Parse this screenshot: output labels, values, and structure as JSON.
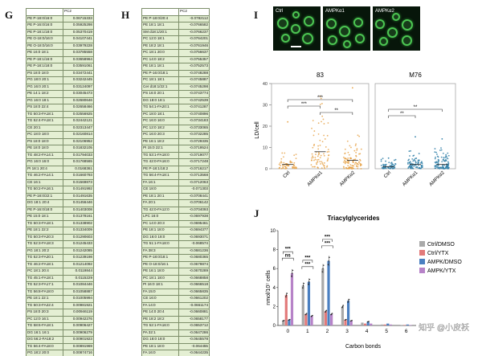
{
  "panels": {
    "g": "G",
    "h": "H",
    "i": "I",
    "j": "J"
  },
  "table_g": {
    "header": "PC2",
    "rows": [
      [
        "PE P-18:0/16:0",
        "0.06715333"
      ],
      [
        "PE P-16:0/16:0",
        "0.05925298"
      ],
      [
        "PE P-18:1/18:0",
        "0.05370419"
      ],
      [
        "PE O-18:0/16:0",
        "0.04107441"
      ],
      [
        "PE O-18:0/16:0",
        "0.03979228"
      ],
      [
        "PE 16:0 18:1",
        "0.03785558"
      ],
      [
        "PE P-18:1/16:0",
        "0.03658964"
      ],
      [
        "PE P-18:1/18:0",
        "0.03591061"
      ],
      [
        "PS 18:0 18:0",
        "0.03472441"
      ],
      [
        "PG 18:0 20:1",
        "0.03242445"
      ],
      [
        "PG 16:0 20:1",
        "0.03124097"
      ],
      [
        "PE 14:1 18:2",
        "0.03045473"
      ],
      [
        "PG 16:0 18:1",
        "0.02680646"
      ],
      [
        "PS 18:0 22:4",
        "0.02658466"
      ],
      [
        "TG 50:3-FA18:1",
        "0.02556925"
      ],
      [
        "TG 52:4-FA18:1",
        "0.02442121"
      ],
      [
        "CE 20:1",
        "0.02313447"
      ],
      [
        "PC 18:0 18:0",
        "0.02160814"
      ],
      [
        "PS 18:0 18:0",
        "0.02106952"
      ],
      [
        "PE 18:0 18:0",
        "0.01832105"
      ],
      [
        "TG 48:2-FA14:1",
        "0.01794033"
      ],
      [
        "PG 16:0 16:0",
        "0.01768565"
      ],
      [
        "PI 18:1 20:4",
        "0.0168361"
      ],
      [
        "TG 46:2-FA14:1",
        "0.01660793"
      ],
      [
        "CE 16:1",
        "0.01569873"
      ],
      [
        "TG 50:2-FA16:1",
        "0.01491992"
      ],
      [
        "PE P-18:0/22:1",
        "0.01491635"
      ],
      [
        "DG 18:1 20:4",
        "0.01456446"
      ],
      [
        "PE P-16:0/18:0",
        "0.01403008"
      ],
      [
        "PE 15:0 18:1",
        "0.01378161"
      ],
      [
        "TG 50:3-FA18:1",
        "0.01338902"
      ],
      [
        "PE 18:1 22:2",
        "0.01334009"
      ],
      [
        "TG 50:3-FA20:3",
        "0.01290603"
      ],
      [
        "TG 52:3-FA18:3",
        "0.01245433"
      ],
      [
        "PG 18:1 20:2",
        "0.01242085"
      ],
      [
        "TG 52:3-FA20:1",
        "0.01239198"
      ],
      [
        "TG 46:2-FA18:1",
        "0.01214092"
      ],
      [
        "PC 18:1 20:4",
        "0.0119844"
      ],
      [
        "TG 45:1-FA18:1",
        "0.0115229"
      ],
      [
        "TG 52:3-FA17:1",
        "0.01084446"
      ],
      [
        "TG 56:8-FA18:0",
        "0.01058887"
      ],
      [
        "PE 18:1 22:1",
        "0.01005994"
      ],
      [
        "TG 50:3-FA22:4",
        "0.00981921"
      ],
      [
        "PS 18:0 20:3",
        "0.00946119"
      ],
      [
        "PC 12:0 16:1",
        "0.00942276"
      ],
      [
        "TG 58:6-FA18:1",
        "0.00906427"
      ],
      [
        "DG 16:1 16:1",
        "0.00906279"
      ],
      [
        "DG 56:2-FA18:2",
        "0.00901923"
      ],
      [
        "TG 56:4-FA18:0",
        "0.00891969"
      ],
      [
        "PG 18:2 20:0",
        "0.00874716"
      ]
    ]
  },
  "table_h": {
    "header": "PC2",
    "rows": [
      [
        "PE P-18:0/20:4",
        "-0.0782112"
      ],
      [
        "PE 18:1 18:1",
        "-0.0766582"
      ],
      [
        "SM d18:1/20:1",
        "-0.0766237"
      ],
      [
        "PC 12:0 18:1",
        "-0.0764201"
      ],
      [
        "PE 18:2 18:1",
        "-0.0761946"
      ],
      [
        "PC 18:1 20:0",
        "-0.0756637"
      ],
      [
        "PC 14:0 18:2",
        "-0.0755357"
      ],
      [
        "PE 18:1 18:1",
        "-0.0752573"
      ],
      [
        "PE P-16:0/18:1",
        "-0.0748288"
      ],
      [
        "PC 18:1 18:1",
        "-0.0745887"
      ],
      [
        "Cer d18:1/22:1",
        "-0.0745298"
      ],
      [
        "PS 16:0 20:1",
        "-0.0743774"
      ],
      [
        "DG 18:0 18:1",
        "-0.0742539"
      ],
      [
        "TG 54:1-FA20:1",
        "-0.0741287"
      ],
      [
        "PC 18:0 18:1",
        "-0.0740896"
      ],
      [
        "PC 16:0 16:0",
        "-0.0734183"
      ],
      [
        "PC 12:0 18:2",
        "-0.0733065"
      ],
      [
        "PC 16:0 20:3",
        "-0.0732285"
      ],
      [
        "PE 16:1 18:2",
        "-0.0729335"
      ],
      [
        "PI 15:0 22:1",
        "-0.0719524"
      ],
      [
        "TG 53:1-FA18:0",
        "-0.0719077"
      ],
      [
        "TG 42:0-FA16:0",
        "-0.0717248"
      ],
      [
        "PE P-18:1/18:2",
        "-0.0716217"
      ],
      [
        "TG 56:4-FA18:1",
        "-0.0713568"
      ],
      [
        "FA 16:1",
        "-0.0712063"
      ],
      [
        "CE 18:0",
        "-0.071303"
      ],
      [
        "PE 18:1 20:1",
        "-0.0708441"
      ],
      [
        "FA 20:1",
        "-0.0706142"
      ],
      [
        "TG 42:0-FA12:0",
        "-0.0704093"
      ],
      [
        "LPC 16:0",
        "-0.0697938"
      ],
      [
        "PC 14:0 20:3",
        "-0.0695461"
      ],
      [
        "PE 18:1 18:0",
        "-0.0694377"
      ],
      [
        "DG 16:0 18:0",
        "-0.0693071"
      ],
      [
        "TG 51:1-FA18:0",
        "-0.068574"
      ],
      [
        "FA 38:3",
        "-0.0681236"
      ],
      [
        "PE P-18:0/18:1",
        "-0.0680365"
      ],
      [
        "PE O-18:0/16:1",
        "-0.0679874"
      ],
      [
        "PE 16:1 18:0",
        "-0.0670289"
      ],
      [
        "PC 18:1 18:0",
        "-0.0668858"
      ],
      [
        "PI 16:0 18:1",
        "-0.0666518"
      ],
      [
        "FA 15:0",
        "-0.0665835"
      ],
      [
        "CE 16:0",
        "-0.0661202"
      ],
      [
        "FA 14:0",
        "-0.0661174"
      ],
      [
        "PE 14:0 20:4",
        "-0.0660881"
      ],
      [
        "PE 18:2 18:2",
        "-0.0658177"
      ],
      [
        "TG 52:1-FA16:0",
        "-0.0653712"
      ],
      [
        "PA 32:1",
        "-0.0647286"
      ],
      [
        "DG 18:0 18:0",
        "-0.0645578"
      ],
      [
        "PE 18:1 18:0",
        "-0.064455"
      ],
      [
        "FA 16:0",
        "-0.0644235"
      ],
      [
        "PA 34:2",
        "-0.064239"
      ],
      [
        "TG 54:2-FA16:1",
        "-0.0641139"
      ]
    ]
  },
  "microscopy": {
    "images": [
      {
        "label": "Ctrl"
      },
      {
        "label": "AMPKα1"
      },
      {
        "label": "AMPKα2"
      }
    ]
  },
  "chart_data": [
    {
      "type": "scatter",
      "title": "",
      "ylabel": "LD/cell",
      "ylim": [
        0,
        40
      ],
      "yticks": [
        0,
        10,
        20,
        30,
        40
      ],
      "groups": [
        {
          "name": "83",
          "color": "#e8a54b",
          "categories": [
            "Ctrl",
            "AMPKα1",
            "AMPKα2"
          ],
          "medians": [
            2,
            8,
            4
          ],
          "maxima": [
            22,
            34,
            38
          ]
        },
        {
          "name": "M76",
          "color": "#2f7fa8",
          "categories": [
            "Ctrl",
            "AMPKα1",
            "AMPKα2"
          ],
          "medians": [
            1,
            2,
            2
          ],
          "maxima": [
            5,
            15,
            14
          ]
        }
      ],
      "significance": [
        {
          "group": "83",
          "pair": [
            "Ctrl",
            "AMPKα1"
          ],
          "label": "***"
        },
        {
          "group": "83",
          "pair": [
            "Ctrl",
            "AMPKα2"
          ],
          "label": "***"
        },
        {
          "group": "83",
          "pair": [
            "AMPKα1",
            "AMPKα2"
          ],
          "label": "**"
        },
        {
          "group": "M76",
          "pair": [
            "Ctrl",
            "AMPKα1"
          ],
          "label": "**"
        },
        {
          "group": "M76",
          "pair": [
            "Ctrl",
            "AMPKα2"
          ],
          "label": "**"
        }
      ]
    },
    {
      "type": "bar",
      "title": "Triacylglycerides",
      "xlabel": "Carbon bonds",
      "ylabel": "nmol/10⁷ cells",
      "categories": [
        "0",
        "1",
        "2",
        "3",
        "4",
        "5",
        "6"
      ],
      "ylim": [
        0,
        10
      ],
      "yticks": [
        0,
        2,
        4,
        6,
        8,
        10
      ],
      "series": [
        {
          "name": "Ctrl/DMSO",
          "color": "#a9a9a9",
          "values": [
            0.5,
            4.2,
            6.0,
            2.0,
            0.3,
            0.1,
            0.05
          ]
        },
        {
          "name": "Ctrl/YTX",
          "color": "#e27a7a",
          "values": [
            3.2,
            1.2,
            1.5,
            0.6,
            0.2,
            0.1,
            0.05
          ]
        },
        {
          "name": "AMPK/DMSO",
          "color": "#4a7fc1",
          "values": [
            0.6,
            4.6,
            6.8,
            2.6,
            0.4,
            0.2,
            0.1
          ]
        },
        {
          "name": "AMPK/YTX",
          "color": "#b783c8",
          "values": [
            5.5,
            1.0,
            1.2,
            0.5,
            0.2,
            0.1,
            0.05
          ]
        }
      ],
      "significance": [
        "ns",
        "***",
        "***",
        "***",
        "***",
        "***",
        "***"
      ]
    }
  ],
  "watermark": "知乎 @小皮袄"
}
